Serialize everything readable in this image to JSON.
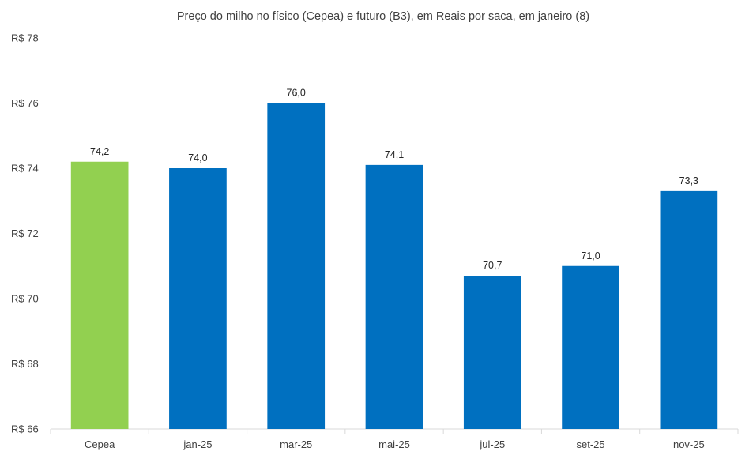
{
  "chart_data": {
    "type": "bar",
    "title": "Preço do milho no físico (Cepea) e futuro (B3), em Reais por saca, em janeiro (8)",
    "xlabel": "",
    "ylabel": "",
    "categories": [
      "Cepea",
      "jan-25",
      "mar-25",
      "mai-25",
      "jul-25",
      "set-25",
      "nov-25"
    ],
    "values": [
      74.2,
      74.0,
      76.0,
      74.1,
      70.7,
      71.0,
      73.3
    ],
    "value_labels": [
      "74,2",
      "74,0",
      "76,0",
      "74,1",
      "70,7",
      "71,0",
      "73,3"
    ],
    "bar_colors": [
      "#92D050",
      "#0070C0",
      "#0070C0",
      "#0070C0",
      "#0070C0",
      "#0070C0",
      "#0070C0"
    ],
    "ylim": [
      66,
      78
    ],
    "y_ticks": [
      66,
      68,
      70,
      72,
      74,
      76,
      78
    ],
    "y_tick_labels": [
      "R$ 66",
      "R$ 68",
      "R$ 70",
      "R$ 72",
      "R$ 74",
      "R$ 76",
      "R$ 78"
    ],
    "grid": false,
    "legend": "none",
    "axis_color": "#D9D9D9"
  }
}
